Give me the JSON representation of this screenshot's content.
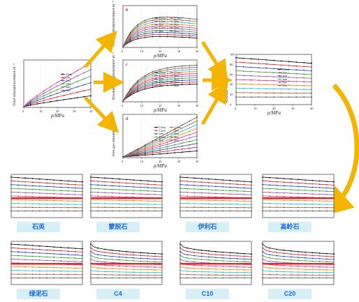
{
  "top_flow": {
    "total": {
      "ylabel": "Total adsorption/mmol·m⁻²",
      "xlabel": "p/MPa",
      "xticks": [
        "0",
        "10",
        "20",
        "30",
        "40"
      ],
      "legend": [
        "0.5nm",
        "1nm",
        "2nm",
        "3nm",
        "4nm",
        "5nm"
      ]
    },
    "excess": {
      "tag": "b",
      "ylabel": "Excess adsorption/mmol·m⁻²",
      "xlabel": "p/MPa",
      "xticks": [
        "0",
        "10",
        "20",
        "30",
        "40"
      ],
      "legend": [
        "0.5nm",
        "1.2nm",
        "1nm",
        "1.5nm",
        "2nm",
        "2.5nm",
        "3nm",
        "4nm",
        "5nm",
        "6nm"
      ]
    },
    "absolute": {
      "tag": "c",
      "ylabel": "Absolute adsorption/mmol·m⁻²",
      "xlabel": "p/MPa",
      "xticks": [
        "0",
        "10",
        "20",
        "30",
        "40"
      ],
      "legend": [
        "0.5nm",
        "1.2nm",
        "1nm",
        "1.5nm",
        "2nm",
        "2.5nm",
        "3nm",
        "4nm",
        "5nm",
        "6nm"
      ]
    },
    "free_gas": {
      "tag": "d",
      "ylabel": "Free gas amount/mmol·m⁻²",
      "xlabel": "p/MPa",
      "xticks": [
        "0",
        "10",
        "20",
        "30",
        "40"
      ],
      "legend": [
        "0.5nm",
        "1.2nm",
        "1nm",
        "1.5nm",
        "2nm",
        "2.5nm",
        "3nm",
        "4nm",
        "5nm",
        "6nm"
      ]
    },
    "ratio": {
      "ylabel": "Absolute/Total/%",
      "xlabel": "p/MPa",
      "xticks": [
        "0",
        "10",
        "20",
        "30",
        "40"
      ],
      "yticks": [
        "0",
        "20",
        "40",
        "60",
        "80",
        "100"
      ],
      "legend": [
        "0.5nm",
        "1nm",
        "2nm",
        "3nm",
        "4nm",
        "5nm"
      ]
    }
  },
  "minerals": [
    {
      "label": "石英"
    },
    {
      "label": "蒙脱石"
    },
    {
      "label": "伊利石"
    },
    {
      "label": "高岭石"
    },
    {
      "label": "绿泥石"
    },
    {
      "label": "C4"
    },
    {
      "label": "C10"
    },
    {
      "label": "C20"
    }
  ],
  "colors": {
    "arrow": "#f5b400",
    "threshold_line": "#e41a1c",
    "label_bg": "#d7f0f7",
    "label_text": "#1e66d6",
    "series": [
      "#000000",
      "#e41a1c",
      "#1f3fbf",
      "#2ca02c",
      "#984ea3",
      "#e7298a",
      "#ff7f00",
      "#17becf",
      "#a65628",
      "#4d4d4d"
    ]
  }
}
